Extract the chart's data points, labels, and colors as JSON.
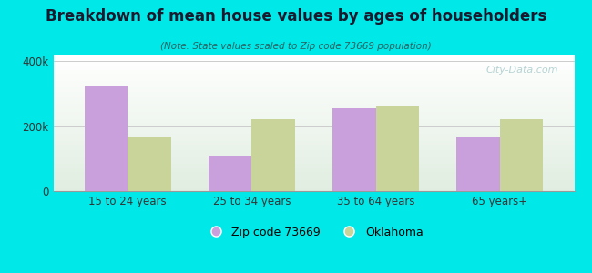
{
  "title": "Breakdown of mean house values by ages of householders",
  "subtitle": "(Note: State values scaled to Zip code 73669 population)",
  "categories": [
    "15 to 24 years",
    "25 to 34 years",
    "35 to 64 years",
    "65 years+"
  ],
  "zip_values": [
    325000,
    110000,
    255000,
    165000
  ],
  "ok_values": [
    165000,
    220000,
    260000,
    220000
  ],
  "zip_color": "#c9a0dc",
  "ok_color": "#c8d49a",
  "background_color": "#00e8e8",
  "ylim": [
    0,
    420000
  ],
  "yticks": [
    0,
    200000,
    400000
  ],
  "ytick_labels": [
    "0",
    "200k",
    "400k"
  ],
  "legend_zip_label": "Zip code 73669",
  "legend_ok_label": "Oklahoma",
  "bar_width": 0.35,
  "title_color": "#1a1a2e",
  "subtitle_color": "#2a6060",
  "tick_color": "#333333",
  "watermark_color": "#aacccc",
  "grid_color": "#cccccc"
}
